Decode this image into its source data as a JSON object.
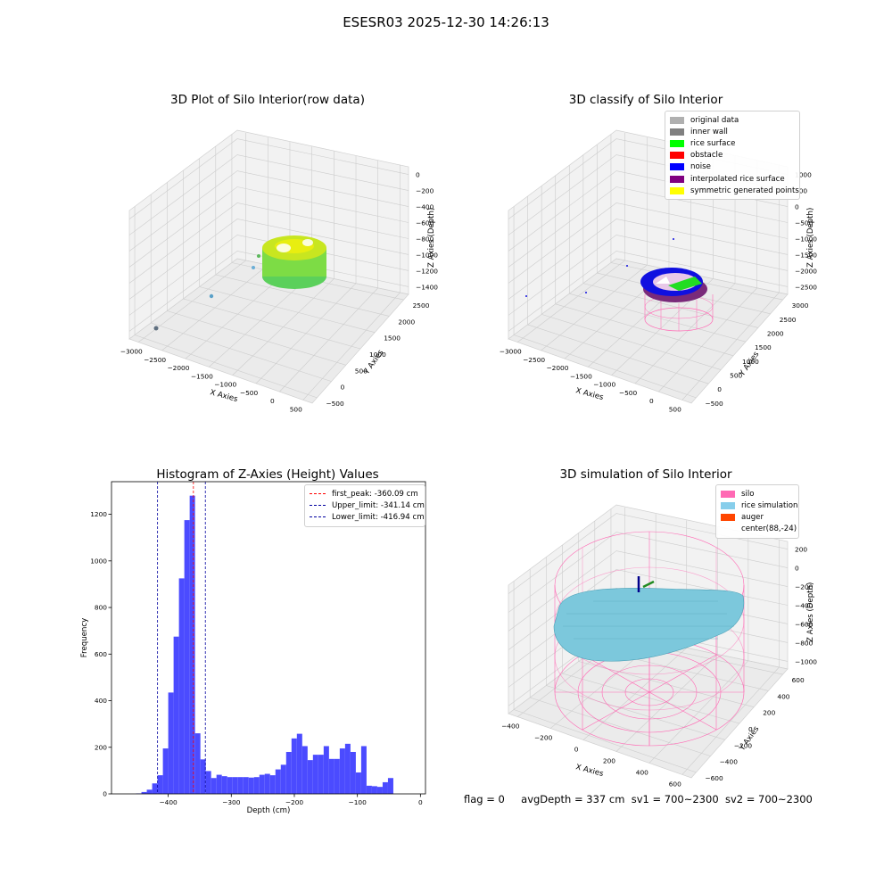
{
  "suptitle": "ESESR03 2025-12-30 14:26:13",
  "colors": {
    "hist_bar": "#4b4bff",
    "first_peak": "#ff0000",
    "limit_line": "#0000a0",
    "silo": "#ff69b4",
    "rice_simulation": "#87ceeb",
    "auger": "#ff4500"
  },
  "panels": [
    {
      "title": "3D Plot of Silo Interior(row data)",
      "xlabel": "X Axies",
      "ylabel": "Y Axies",
      "zlabel": "Z Axies (Depth)",
      "xticks": [
        "−3000",
        "−2500",
        "−2000",
        "−1500",
        "−1000",
        "−500",
        "0",
        "500"
      ],
      "yticks": [
        "−500",
        "0",
        "500",
        "1000",
        "1500",
        "2000",
        "2500"
      ],
      "zticks": [
        "0",
        "−200",
        "−400",
        "−600",
        "−800",
        "−1000",
        "−1200",
        "−1400"
      ]
    },
    {
      "title": "3D classify of Silo Interior",
      "xlabel": "X Axies",
      "ylabel": "Y Axies",
      "zlabel": "Z Axies (Depth)",
      "xticks": [
        "−3000",
        "−2500",
        "−2000",
        "−1500",
        "−1000",
        "−500",
        "0",
        "500"
      ],
      "yticks": [
        "−500",
        "0",
        "500",
        "1000",
        "1500",
        "2000",
        "2500",
        "3000"
      ],
      "zticks": [
        "1000",
        "500",
        "0",
        "−500",
        "−1000",
        "−1500",
        "−2000",
        "−2500"
      ],
      "legend": [
        {
          "label": "original data",
          "color": "#b0b0b0"
        },
        {
          "label": "inner wall",
          "color": "#808080"
        },
        {
          "label": "rice surface",
          "color": "#00ff00"
        },
        {
          "label": "obstacle",
          "color": "#ff0000"
        },
        {
          "label": "noise",
          "color": "#0000ff"
        },
        {
          "label": "interpolated rice surface",
          "color": "#800080"
        },
        {
          "label": "symmetric generated points",
          "color": "#ffff00"
        }
      ]
    },
    {
      "title": "3D simulation of Silo Interior",
      "xlabel": "X Axies",
      "ylabel": "Y Axies",
      "zlabel": "Z Axies (Depth)",
      "xticks": [
        "−400",
        "−200",
        "0",
        "200",
        "400",
        "600"
      ],
      "yticks": [
        "−600",
        "−400",
        "−200",
        "0",
        "200",
        "400",
        "600"
      ],
      "zticks": [
        "200",
        "0",
        "−200",
        "−400",
        "−600",
        "−800",
        "−1000"
      ],
      "legend": [
        {
          "label": "silo",
          "color": "#ff69b4"
        },
        {
          "label": "rice simulation",
          "color": "#87ceeb"
        },
        {
          "label": "auger",
          "color": "#ff4500"
        },
        {
          "label": "center(88,-24)",
          "color": ""
        }
      ]
    }
  ],
  "chart_data": {
    "type": "bar",
    "title": "Histogram of Z-Axies (Height) Values",
    "xlabel": "Depth (cm)",
    "ylabel": "Frequency",
    "xlim": [
      -490,
      8
    ],
    "ylim": [
      0,
      1340
    ],
    "xticks": [
      -400,
      -300,
      -200,
      -100,
      0
    ],
    "yticks": [
      0,
      200,
      400,
      600,
      800,
      1000,
      1200
    ],
    "bin_width": 8.5,
    "bins": [
      {
        "x": -451,
        "v": 2
      },
      {
        "x": -442.5,
        "v": 8
      },
      {
        "x": -434,
        "v": 18
      },
      {
        "x": -425.5,
        "v": 45
      },
      {
        "x": -417,
        "v": 80
      },
      {
        "x": -408.5,
        "v": 195
      },
      {
        "x": -400,
        "v": 435
      },
      {
        "x": -391.5,
        "v": 675
      },
      {
        "x": -383,
        "v": 925
      },
      {
        "x": -374.5,
        "v": 1175
      },
      {
        "x": -366,
        "v": 1280
      },
      {
        "x": -357.5,
        "v": 260
      },
      {
        "x": -349,
        "v": 148
      },
      {
        "x": -340.5,
        "v": 98
      },
      {
        "x": -332,
        "v": 68
      },
      {
        "x": -323.5,
        "v": 82
      },
      {
        "x": -315,
        "v": 76
      },
      {
        "x": -306.5,
        "v": 72
      },
      {
        "x": -298,
        "v": 72
      },
      {
        "x": -289.5,
        "v": 72
      },
      {
        "x": -281,
        "v": 72
      },
      {
        "x": -272.5,
        "v": 70
      },
      {
        "x": -264,
        "v": 72
      },
      {
        "x": -255.5,
        "v": 82
      },
      {
        "x": -247,
        "v": 86
      },
      {
        "x": -238.5,
        "v": 80
      },
      {
        "x": -230,
        "v": 105
      },
      {
        "x": -221.5,
        "v": 125
      },
      {
        "x": -213,
        "v": 180
      },
      {
        "x": -204.5,
        "v": 238
      },
      {
        "x": -196,
        "v": 258
      },
      {
        "x": -187.5,
        "v": 205
      },
      {
        "x": -179,
        "v": 145
      },
      {
        "x": -170.5,
        "v": 168
      },
      {
        "x": -162,
        "v": 168
      },
      {
        "x": -153.5,
        "v": 205
      },
      {
        "x": -145,
        "v": 150
      },
      {
        "x": -136.5,
        "v": 150
      },
      {
        "x": -128,
        "v": 195
      },
      {
        "x": -119.5,
        "v": 215
      },
      {
        "x": -111,
        "v": 180
      },
      {
        "x": -102.5,
        "v": 92
      },
      {
        "x": -94,
        "v": 205
      },
      {
        "x": -85.5,
        "v": 35
      },
      {
        "x": -77,
        "v": 33
      },
      {
        "x": -68.5,
        "v": 30
      },
      {
        "x": -60,
        "v": 50
      },
      {
        "x": -51.5,
        "v": 68
      }
    ],
    "bin_offset": 56,
    "lines": [
      {
        "label": "first_peak: -360.09 cm",
        "value": -360.09,
        "color": "#ff0000"
      },
      {
        "label": "Upper_limit: -341.14 cm",
        "value": -341.14,
        "color": "#0000a0"
      },
      {
        "label": "Lower_limit: -416.94 cm",
        "value": -416.94,
        "color": "#0000a0"
      }
    ],
    "legend_position": "upper right"
  },
  "footer": {
    "flag": "flag = 0",
    "avg": "avgDepth = 337 cm",
    "sv1": "sv1 = 700~2300",
    "sv2": "sv2 = 700~2300"
  }
}
